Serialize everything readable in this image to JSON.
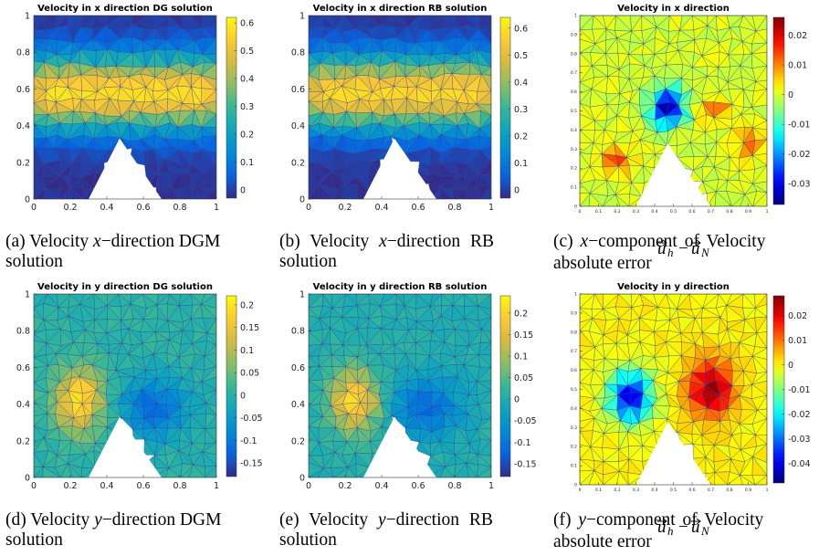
{
  "figure": {
    "panels": [
      {
        "id": "a",
        "plot_title": "Velocity in x direction DG solution",
        "caption": {
          "label": "(a)",
          "text": "Velocity x−direction DGM solution"
        },
        "caption_parts": [
          "(a) Velocity ",
          "x",
          "−direction DGM",
          "solution"
        ],
        "colormap": "parula",
        "field": "x",
        "colorbar": {
          "min": -0.03,
          "max": 0.62,
          "ticks": [
            "0.6",
            "0.5",
            "0.4",
            "0.3",
            "0.2",
            "0.1",
            "0"
          ]
        },
        "axis_ticks_x": [
          "0",
          "0.2",
          "0.4",
          "0.6",
          "0.8",
          "1"
        ],
        "axis_ticks_y": [
          "0",
          "0.2",
          "0.4",
          "0.6",
          "0.8",
          "1"
        ]
      },
      {
        "id": "b",
        "plot_title": "Velocity in x direction RB solution",
        "caption": {
          "label": "(b)",
          "text": "Velocity x−direction RB solution"
        },
        "caption_parts": [
          "(b) Velocity ",
          "x",
          "−direction RB",
          "solution"
        ],
        "colormap": "parula",
        "field": "x",
        "colorbar": {
          "min": -0.03,
          "max": 0.64,
          "ticks": [
            "0.6",
            "0.5",
            "0.4",
            "0.3",
            "0.2",
            "0.1",
            "0"
          ]
        },
        "axis_ticks_x": [
          "0",
          "0.2",
          "0.4",
          "0.6",
          "0.8",
          "1"
        ],
        "axis_ticks_y": [
          "0",
          "0.2",
          "0.4",
          "0.6",
          "0.8",
          "1"
        ]
      },
      {
        "id": "c",
        "plot_title": "Velocity in x direction",
        "caption": {
          "label": "(c)",
          "text": "x−component of Velocity absolute error u_h − u_N"
        },
        "caption_parts": [
          "(c) ",
          "x",
          "−component of Velocity",
          "absolute error "
        ],
        "colormap": "jet",
        "field": "ex",
        "colorbar": {
          "min": -0.037,
          "max": 0.026,
          "ticks": [
            "0.02",
            "0.01",
            "0",
            "-0.01",
            "-0.02",
            "-0.03"
          ]
        },
        "axis_ticks_x": [
          "0",
          "0.1",
          "0.2",
          "0.3",
          "0.4",
          "0.5",
          "0.6",
          "0.7",
          "0.8",
          "0.9",
          "1"
        ],
        "axis_ticks_y": [
          "0",
          "0.1",
          "0.2",
          "0.3",
          "0.4",
          "0.5",
          "0.6",
          "0.7",
          "0.8",
          "0.9",
          "1"
        ]
      },
      {
        "id": "d",
        "plot_title": "Velocity in y direction DG solution",
        "caption": {
          "label": "(d)",
          "text": "Velocity y−direction DGM solution"
        },
        "caption_parts": [
          "(d) Velocity ",
          "y",
          "−direction DGM",
          "solution"
        ],
        "colormap": "parula",
        "field": "y",
        "colorbar": {
          "min": -0.18,
          "max": 0.22,
          "ticks": [
            "0.2",
            "0.15",
            "0.1",
            "0.05",
            "0",
            "-0.05",
            "-0.1",
            "-0.15"
          ]
        },
        "axis_ticks_x": [
          "0",
          "0.2",
          "0.4",
          "0.6",
          "0.8",
          "1"
        ],
        "axis_ticks_y": [
          "0",
          "0.2",
          "0.4",
          "0.6",
          "0.8",
          "1"
        ]
      },
      {
        "id": "e",
        "plot_title": "Velocity in y direction RB solution",
        "caption": {
          "label": "(e)",
          "text": "Velocity y−direction RB solution"
        },
        "caption_parts": [
          "(e) Velocity ",
          "y",
          "−direction RB",
          "solution"
        ],
        "colormap": "parula",
        "field": "y",
        "colorbar": {
          "min": -0.18,
          "max": 0.24,
          "ticks": [
            "0.2",
            "0.15",
            "0.1",
            "0.05",
            "0",
            "-0.05",
            "-0.1",
            "-0.15"
          ]
        },
        "axis_ticks_x": [
          "0",
          "0.2",
          "0.4",
          "0.6",
          "0.8",
          "1"
        ],
        "axis_ticks_y": [
          "0",
          "0.2",
          "0.4",
          "0.6",
          "0.8",
          "1"
        ]
      },
      {
        "id": "f",
        "plot_title": "Velocity in y direction",
        "caption": {
          "label": "(f)",
          "text": "y−component of Velocity absolute error u_h − u_N"
        },
        "caption_parts": [
          "(f) ",
          "y",
          "−component of Velocity",
          "absolute error "
        ],
        "colormap": "jet",
        "field": "ey",
        "colorbar": {
          "min": -0.048,
          "max": 0.028,
          "ticks": [
            "0.02",
            "0.01",
            "0",
            "-0.01",
            "-0.02",
            "-0.03",
            "-0.04"
          ]
        },
        "axis_ticks_x": [
          "0",
          "0.1",
          "0.2",
          "0.3",
          "0.4",
          "0.5",
          "0.6",
          "0.7",
          "0.8",
          "0.9",
          "1"
        ],
        "axis_ticks_y": [
          "0",
          "0.1",
          "0.2",
          "0.3",
          "0.4",
          "0.5",
          "0.6",
          "0.7",
          "0.8",
          "0.9",
          "1"
        ]
      }
    ],
    "error_symbols": {
      "u": "u",
      "h": "h",
      "N": "N",
      "minus": "−"
    }
  }
}
